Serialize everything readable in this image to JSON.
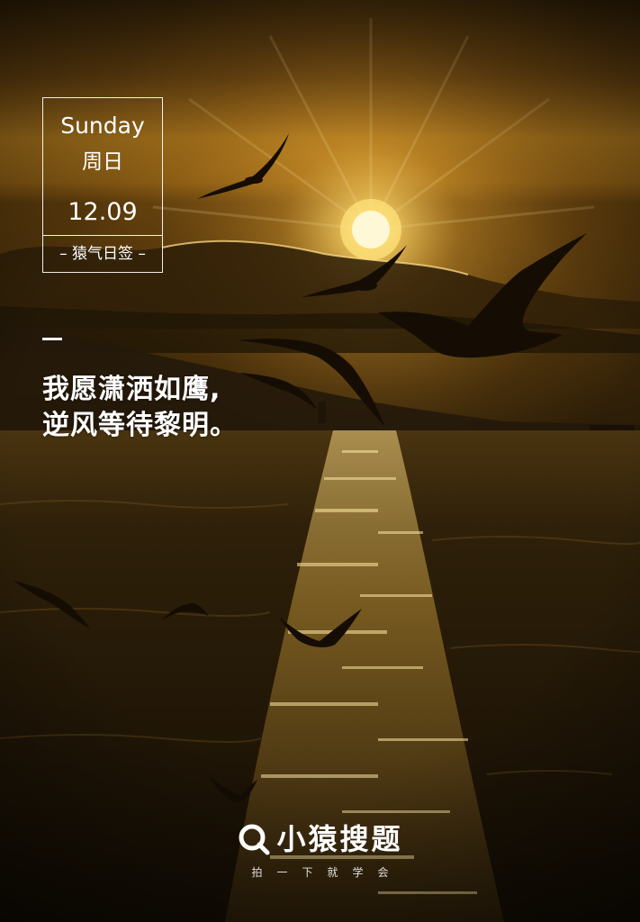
{
  "date_card": {
    "day_en": "Sunday",
    "day_zh": "周日",
    "date": "12.09",
    "tag": "– 猿气日签 –"
  },
  "quote": {
    "lines": [
      "我愿潇洒如鹰,",
      "逆风等待黎明。"
    ]
  },
  "brand": {
    "name": "小猿搜题",
    "slogan": "拍一下就学会",
    "icon": "magnifier-q-icon"
  },
  "colors": {
    "sky_top": "#3b2707",
    "sky_glow": "#f6c34a",
    "sun": "#fff6c8",
    "sea_dark": "#1c1306",
    "reflection": "#f2c14a"
  }
}
